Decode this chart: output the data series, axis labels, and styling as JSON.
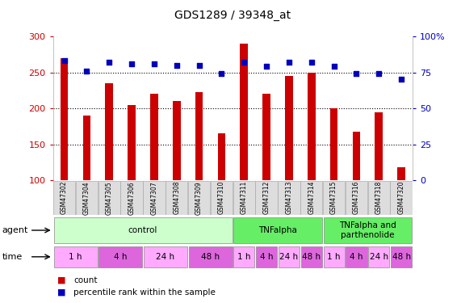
{
  "title": "GDS1289 / 39348_at",
  "samples": [
    "GSM47302",
    "GSM47304",
    "GSM47305",
    "GSM47306",
    "GSM47307",
    "GSM47308",
    "GSM47309",
    "GSM47310",
    "GSM47311",
    "GSM47312",
    "GSM47313",
    "GSM47314",
    "GSM47315",
    "GSM47316",
    "GSM47318",
    "GSM47320"
  ],
  "counts": [
    270,
    190,
    235,
    205,
    220,
    210,
    222,
    165,
    290,
    220,
    245,
    250,
    200,
    168,
    195,
    118
  ],
  "percentile_ranks": [
    83,
    76,
    82,
    81,
    81,
    80,
    80,
    74,
    82,
    79,
    82,
    82,
    79,
    74,
    74,
    70
  ],
  "ylim_left": [
    100,
    300
  ],
  "ylim_right": [
    0,
    100
  ],
  "yticks_left": [
    100,
    150,
    200,
    250,
    300
  ],
  "yticks_right": [
    0,
    25,
    50,
    75,
    100
  ],
  "bar_color": "#cc0000",
  "dot_color": "#0000bb",
  "agent_groups": [
    {
      "label": "control",
      "start": 0,
      "end": 8,
      "color": "#ccffcc"
    },
    {
      "label": "TNFalpha",
      "start": 8,
      "end": 12,
      "color": "#66ee66"
    },
    {
      "label": "TNFalpha and\nparthenolide",
      "start": 12,
      "end": 16,
      "color": "#66ee66"
    }
  ],
  "time_groups": [
    {
      "label": "1 h",
      "start": 0,
      "end": 2,
      "color": "#ffaaff"
    },
    {
      "label": "4 h",
      "start": 2,
      "end": 4,
      "color": "#dd66dd"
    },
    {
      "label": "24 h",
      "start": 4,
      "end": 6,
      "color": "#ffaaff"
    },
    {
      "label": "48 h",
      "start": 6,
      "end": 8,
      "color": "#dd66dd"
    },
    {
      "label": "1 h",
      "start": 8,
      "end": 9,
      "color": "#ffaaff"
    },
    {
      "label": "4 h",
      "start": 9,
      "end": 10,
      "color": "#dd66dd"
    },
    {
      "label": "24 h",
      "start": 10,
      "end": 11,
      "color": "#ffaaff"
    },
    {
      "label": "48 h",
      "start": 11,
      "end": 12,
      "color": "#dd66dd"
    },
    {
      "label": "1 h",
      "start": 12,
      "end": 13,
      "color": "#ffaaff"
    },
    {
      "label": "4 h",
      "start": 13,
      "end": 14,
      "color": "#dd66dd"
    },
    {
      "label": "24 h",
      "start": 14,
      "end": 15,
      "color": "#ffaaff"
    },
    {
      "label": "48 h",
      "start": 15,
      "end": 16,
      "color": "#dd66dd"
    }
  ],
  "bar_color_left": "#cc0000",
  "ylabel_right_color": "#0000bb",
  "bg_color": "#ffffff",
  "plot_bg_color": "#ffffff",
  "grid_color": "#000000",
  "xtick_bg": "#dddddd",
  "xtick_border": "#aaaaaa"
}
